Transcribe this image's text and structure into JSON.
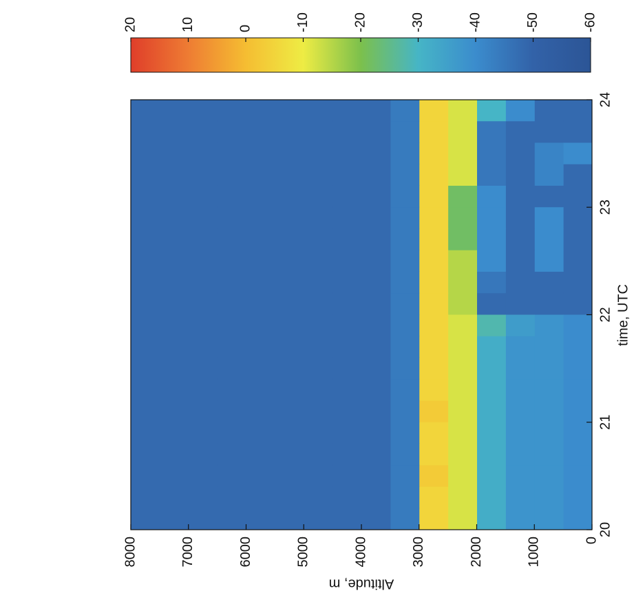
{
  "chart_data": {
    "type": "heatmap",
    "x_label": "time, UTC",
    "y_label": "Altitude, m",
    "xlim": [
      20,
      24
    ],
    "xticks": [
      20,
      21,
      22,
      23,
      24
    ],
    "ylim": [
      0,
      8000
    ],
    "yticks": [
      0,
      1000,
      2000,
      3000,
      4000,
      5000,
      6000,
      7000,
      8000
    ],
    "x_bins": [
      20,
      20.2,
      20.4,
      20.6,
      20.8,
      21,
      21.2,
      21.4,
      21.6,
      21.8,
      22,
      22.2,
      22.4,
      22.6,
      22.8,
      23,
      23.2,
      23.4,
      23.6,
      23.8,
      24
    ],
    "y_bins": [
      0,
      500,
      1000,
      1500,
      2000,
      2500,
      3000,
      3500,
      4000,
      4500,
      5000,
      5500,
      6000,
      6500,
      7000,
      7500,
      8000
    ],
    "z": [
      [
        -40,
        -40,
        -40,
        -40,
        -40,
        -40,
        -40,
        -40,
        -40,
        -40,
        -48,
        -48,
        -48,
        -48,
        -48,
        -48,
        -48,
        -40,
        -48,
        -48
      ],
      [
        -38,
        -38,
        -38,
        -38,
        -38,
        -38,
        -38,
        -38,
        -38,
        -38,
        -48,
        -48,
        -40,
        -40,
        -40,
        -48,
        -42,
        -42,
        -48,
        -48
      ],
      [
        -38,
        -38,
        -38,
        -38,
        -38,
        -38,
        -38,
        -38,
        -38,
        -36,
        -48,
        -48,
        -48,
        -48,
        -48,
        -48,
        -48,
        -48,
        -48,
        -40
      ],
      [
        -32,
        -32,
        -32,
        -32,
        -32,
        -32,
        -32,
        -32,
        -32,
        -28,
        -48,
        -45,
        -40,
        -40,
        -40,
        -40,
        -45,
        -45,
        -45,
        -30
      ],
      [
        -12,
        -12,
        -12,
        -12,
        -12,
        -12,
        -12,
        -12,
        -12,
        -12,
        -15,
        -15,
        -15,
        -22,
        -22,
        -22,
        -12,
        -12,
        -12,
        -12
      ],
      [
        -5,
        -5,
        -3,
        -5,
        -5,
        -3,
        -5,
        -5,
        -5,
        -5,
        -5,
        -5,
        -5,
        -5,
        -5,
        -5,
        -5,
        -5,
        -5,
        -5
      ],
      [
        -44,
        -44,
        -44,
        -44,
        -44,
        -44,
        -44,
        -44,
        -44,
        -44,
        -44,
        -44,
        -44,
        -44,
        -44,
        -44,
        -44,
        -44,
        -44,
        -44
      ],
      [
        -48,
        -48,
        -48,
        -48,
        -48,
        -48,
        -48,
        -48,
        -48,
        -48,
        -48,
        -48,
        -48,
        -48,
        -48,
        -48,
        -48,
        -48,
        -48,
        -48
      ],
      [
        -48,
        -48,
        -48,
        -48,
        -48,
        -48,
        -48,
        -48,
        -48,
        -48,
        -48,
        -48,
        -48,
        -48,
        -48,
        -48,
        -48,
        -48,
        -48,
        -48
      ],
      [
        -48,
        -48,
        -48,
        -48,
        -48,
        -48,
        -48,
        -48,
        -48,
        -48,
        -48,
        -48,
        -48,
        -48,
        -48,
        -48,
        -48,
        -48,
        -48,
        -48
      ],
      [
        -48,
        -48,
        -48,
        -48,
        -48,
        -48,
        -48,
        -48,
        -48,
        -48,
        -48,
        -48,
        -48,
        -48,
        -48,
        -48,
        -48,
        -48,
        -48,
        -48
      ],
      [
        -48,
        -48,
        -48,
        -48,
        -48,
        -48,
        -48,
        -48,
        -48,
        -48,
        -48,
        -48,
        -48,
        -48,
        -48,
        -48,
        -48,
        -48,
        -48,
        -48
      ],
      [
        -48,
        -48,
        -48,
        -48,
        -48,
        -48,
        -48,
        -48,
        -48,
        -48,
        -48,
        -48,
        -48,
        -48,
        -48,
        -48,
        -48,
        -48,
        -48,
        -48
      ],
      [
        -48,
        -48,
        -48,
        -48,
        -48,
        -48,
        -48,
        -48,
        -48,
        -48,
        -48,
        -48,
        -48,
        -48,
        -48,
        -48,
        -48,
        -48,
        -48,
        -48
      ],
      [
        -48,
        -48,
        -48,
        -48,
        -48,
        -48,
        -48,
        -48,
        -48,
        -48,
        -48,
        -48,
        -48,
        -48,
        -48,
        -48,
        -48,
        -48,
        -48,
        -48
      ],
      [
        -48,
        -48,
        -48,
        -48,
        -48,
        -48,
        -48,
        -48,
        -48,
        -48,
        -48,
        -48,
        -48,
        -48,
        -48,
        -48,
        -48,
        -48,
        -48,
        -48
      ]
    ],
    "zlim": [
      -60,
      20
    ],
    "zticks": [
      20,
      10,
      0,
      -10,
      -20,
      -30,
      -40,
      -50,
      -60
    ],
    "colormap": [
      "#2c5596",
      "#3262a8",
      "#3b8ccd",
      "#46b5c6",
      "#7cc04c",
      "#eeec44",
      "#f5bd32",
      "#ee7c33",
      "#df3e2a"
    ],
    "rotation": -90
  }
}
